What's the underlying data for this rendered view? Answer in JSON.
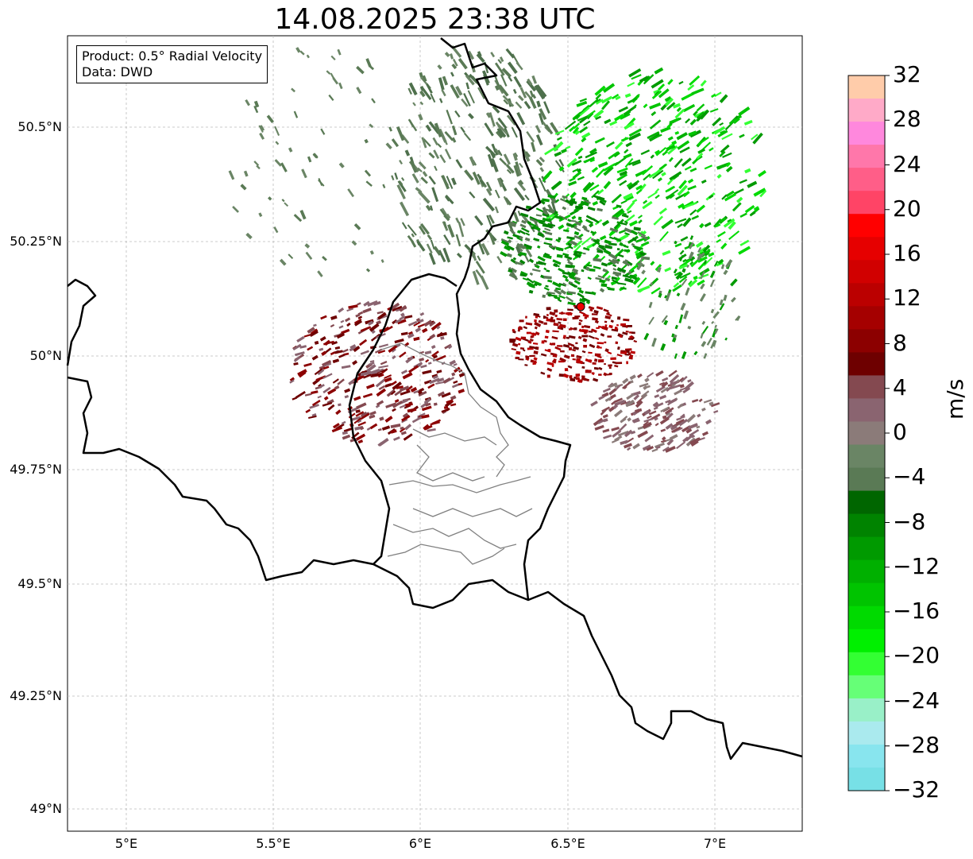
{
  "title": "14.08.2025 23:38 UTC",
  "info": {
    "product": "Product: 0.5° Radial Velocity",
    "data": "Data: DWD"
  },
  "axes": {
    "lat_labels": [
      "50.5°N",
      "50.25°N",
      "50°N",
      "49.75°N",
      "49.5°N",
      "49.25°N",
      "49°N"
    ],
    "lon_labels": [
      "5°E",
      "5.5°E",
      "6°E",
      "6.5°E",
      "7°E"
    ]
  },
  "colorbar": {
    "unit": "m/s",
    "ticks": [
      "32",
      "28",
      "24",
      "20",
      "16",
      "12",
      "8",
      "4",
      "0",
      "−4",
      "−8",
      "−12",
      "−16",
      "−20",
      "−24",
      "−28",
      "−32"
    ],
    "colors": [
      "#ffccaa",
      "#ffaac8",
      "#ff88dd",
      "#ff77aa",
      "#ff5e88",
      "#ff4466",
      "#ff0000",
      "#e60000",
      "#d10000",
      "#bb0000",
      "#a50000",
      "#8c0000",
      "#6e0000",
      "#844950",
      "#8a6470",
      "#8b7b79",
      "#6a8565",
      "#5a7a55",
      "#006600",
      "#008300",
      "#009a00",
      "#00b000",
      "#00c400",
      "#00da00",
      "#00f000",
      "#33ff33",
      "#66ff77",
      "#99f0c8",
      "#aaeaee",
      "#88e5ee",
      "#77e0e6"
    ]
  },
  "radar_site": "red-dot",
  "colors": {
    "grid": "#bbbbbb",
    "border": "#000000",
    "admin_border": "#808080"
  }
}
